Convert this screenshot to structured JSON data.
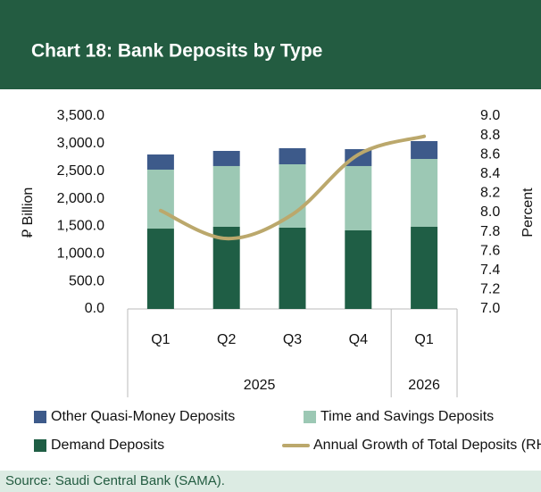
{
  "chart_data": {
    "type": "bar",
    "title": "Chart 18: Bank Deposits by Type",
    "source": "Source: Saudi Central Bank (SAMA).",
    "ylabel": "⃁ Billion",
    "y2label": "Percent",
    "categories": [
      "Q1",
      "Q2",
      "Q3",
      "Q4",
      "Q1"
    ],
    "groups": [
      {
        "label": "2025",
        "span": 4
      },
      {
        "label": "2026",
        "span": 1
      }
    ],
    "series": [
      {
        "name": "Demand Deposits",
        "color": "#1f5e45",
        "values": [
          1458,
          1491,
          1475,
          1426,
          1491
        ]
      },
      {
        "name": "Time and Savings Deposits",
        "color": "#9cc8b4",
        "values": [
          1070,
          1102,
          1150,
          1167,
          1231
        ]
      },
      {
        "name": "Other Quasi-Money Deposits",
        "color": "#3d5a8a",
        "values": [
          275,
          275,
          292,
          307,
          324
        ]
      },
      {
        "name": "Annual Growth of Total Deposits (RHS)",
        "color": "#bba86c",
        "type": "line",
        "axis": "y2",
        "values": [
          8.02,
          7.73,
          7.98,
          8.6,
          8.79
        ]
      }
    ],
    "ylim": [
      0,
      3500
    ],
    "yticks": [
      {
        "value": 0,
        "label": "0.0"
      },
      {
        "value": 500,
        "label": "500.0"
      },
      {
        "value": 1000,
        "label": "1,000.0"
      },
      {
        "value": 1500,
        "label": "1,500.0"
      },
      {
        "value": 2000,
        "label": "2,000.0"
      },
      {
        "value": 2500,
        "label": "2,500.0"
      },
      {
        "value": 3000,
        "label": "3,000.0"
      },
      {
        "value": 3500,
        "label": "3,500.0"
      }
    ],
    "y2lim": [
      7,
      9
    ],
    "y2ticks": [
      {
        "value": 7,
        "label": "7.0"
      },
      7.2,
      7.4,
      7.6,
      7.8,
      {
        "value": 8,
        "label": "8.0"
      },
      8.2,
      8.4,
      8.6,
      8.8,
      {
        "value": 9,
        "label": "9.0"
      }
    ]
  }
}
